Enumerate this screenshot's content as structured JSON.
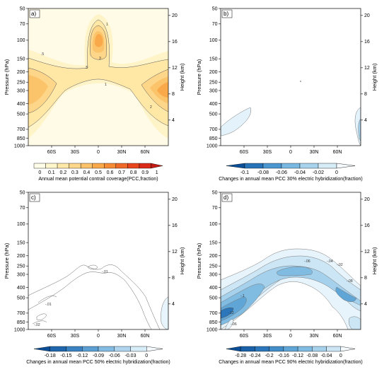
{
  "chart_data": [
    {
      "type": "contour",
      "panel_label": "a)",
      "colorbar": {
        "ticks": [
          "0",
          "0.1",
          "0.2",
          "0.3",
          "0.4",
          "0.5",
          "0.6",
          "0.7",
          "0.8",
          "0.9",
          "1"
        ],
        "colors": [
          "#fffde8",
          "#fff6cc",
          "#ffe8a8",
          "#fdd88a",
          "#fbc36a",
          "#f9a94a",
          "#f58b34",
          "#ef6a28",
          "#e8471e",
          "#dc2a18",
          "#c41a14"
        ],
        "label": "Annual mean potential contrail coverage(PCC,fraction)",
        "arrow_right": true,
        "arrow_left": false
      },
      "contour_labels": [
        "1",
        "2",
        "3",
        ".5"
      ],
      "x_ticks": [
        "60S",
        "30S",
        "0",
        "30N",
        "60N"
      ],
      "y_left_ticks": [
        "50",
        "70",
        "100",
        "150",
        "200",
        "250",
        "300",
        "400",
        "500",
        "700",
        "850",
        "1000"
      ],
      "y_right_ticks": [
        "4",
        "8",
        "12",
        "16",
        "20"
      ],
      "ylabel_left": "Pressure (hPa)",
      "ylabel_right": "Height (km)"
    },
    {
      "type": "contour",
      "panel_label": "b)",
      "colorbar": {
        "ticks": [
          "-0.1",
          "-0.08",
          "-0.06",
          "-0.04",
          "-0.02",
          "0"
        ],
        "colors": [
          "#0a4f98",
          "#2673b8",
          "#4b97cf",
          "#79b8e0",
          "#a8d3ec",
          "#d6ecf7",
          "#f4fafd"
        ],
        "label": "Changes in annual mean PCC 30% electric hybridization(fraction)",
        "arrow_left": true,
        "arrow_right": true
      },
      "x_ticks": [
        "60S",
        "30S",
        "0",
        "30N",
        "60N"
      ],
      "y_left_ticks": [
        "50",
        "70",
        "100",
        "150",
        "200",
        "250",
        "300",
        "400",
        "500",
        "700",
        "850",
        "1000"
      ],
      "y_right_ticks": [
        "4",
        "8",
        "12",
        "16",
        "20"
      ],
      "ylabel_left": "Pressure (hPa)",
      "ylabel_right": "Height (km)"
    },
    {
      "type": "contour",
      "panel_label": "c)",
      "colorbar": {
        "ticks": [
          "-0.18",
          "-0.15",
          "-0.12",
          "-0.09",
          "-0.06",
          "-0.03",
          "0"
        ],
        "colors": [
          "#0a4f98",
          "#1f66ad",
          "#3a82c2",
          "#5b9fd3",
          "#84bbe2",
          "#aed4ee",
          "#d6ecf7",
          "#f4fafd"
        ],
        "label": "Changes in annual mean PCC 50% electric hybridization(fraction)",
        "arrow_left": true,
        "arrow_right": true
      },
      "contour_labels": [
        "-.01",
        "-.02",
        "-.01"
      ],
      "x_ticks": [
        "60S",
        "30S",
        "0",
        "30N",
        "60N"
      ],
      "y_left_ticks": [
        "50",
        "70",
        "100",
        "150",
        "200",
        "250",
        "300",
        "400",
        "500",
        "700",
        "850",
        "1000"
      ],
      "y_right_ticks": [
        "4",
        "8",
        "12",
        "16",
        "20"
      ],
      "ylabel_left": "Pressure (hPa)",
      "ylabel_right": "Height (km)"
    },
    {
      "type": "contour",
      "panel_label": "d)",
      "colorbar": {
        "ticks": [
          "-0.28",
          "-0.24",
          "-0.2",
          "-0.16",
          "-0.12",
          "-0.08",
          "-0.04",
          "0"
        ],
        "colors": [
          "#0a4f98",
          "#1a61a9",
          "#2c77bb",
          "#438ec9",
          "#5fa5d6",
          "#80bbe2",
          "#a6d1ed",
          "#cce6f5",
          "#f4fafd"
        ],
        "label": "Changes in annual mean PCC 90% electric hybridization(fraction)",
        "arrow_left": true,
        "arrow_right": true
      },
      "contour_labels": [
        "-.06",
        "-.04",
        "-.02",
        "-.08",
        "-.1",
        "-.12",
        "-.06"
      ],
      "x_ticks": [
        "60S",
        "30S",
        "0",
        "30N",
        "60N"
      ],
      "y_left_ticks": [
        "50",
        "70",
        "100",
        "150",
        "200",
        "250",
        "300",
        "400",
        "500",
        "700",
        "850",
        "1000"
      ],
      "y_right_ticks": [
        "4",
        "8",
        "12",
        "16",
        "20"
      ],
      "ylabel_left": "Pressure (hPa)",
      "ylabel_right": "Height (km)"
    }
  ]
}
